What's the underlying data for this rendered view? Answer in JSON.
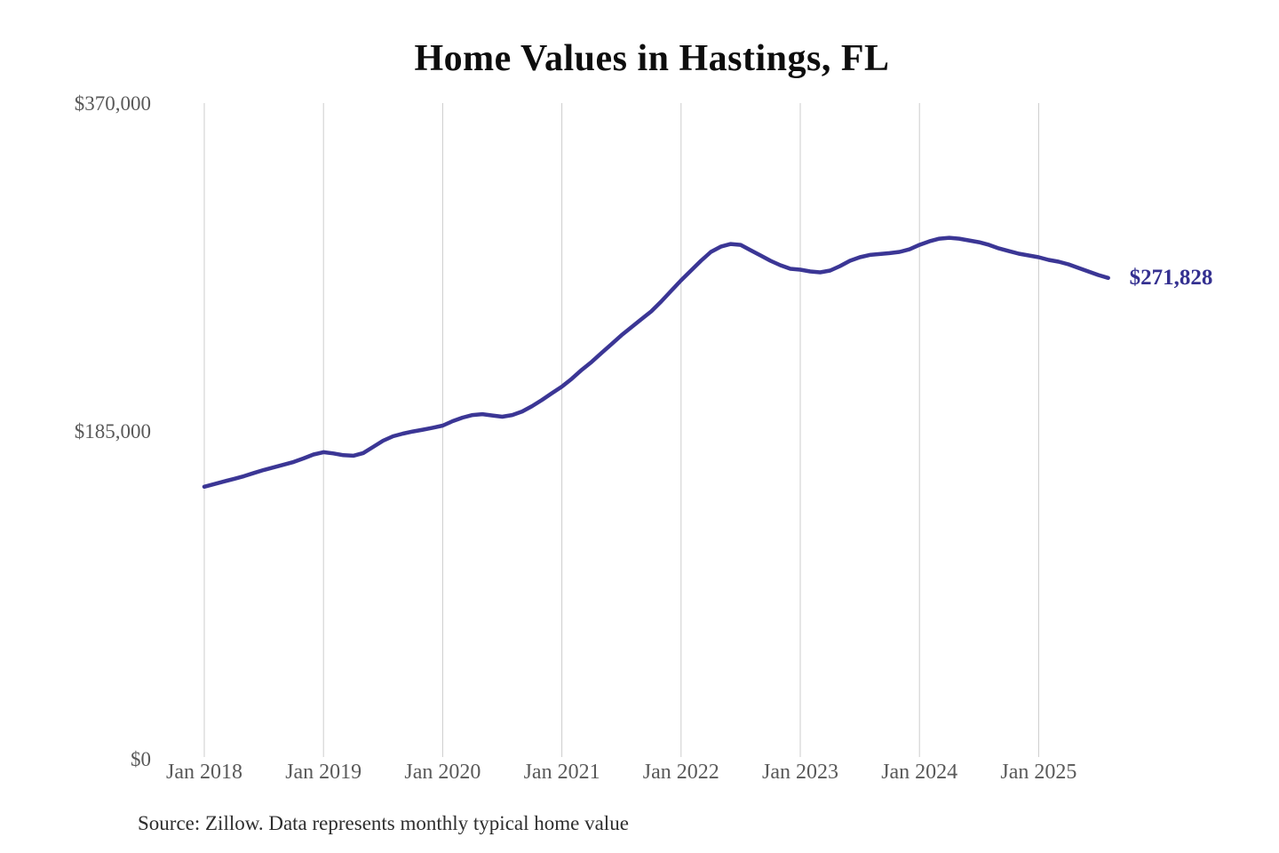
{
  "chart": {
    "title": "Home Values in Hastings, FL",
    "latest_label": "$271,828",
    "source": "Source: Zillow. Data represents monthly typical home value"
  },
  "chart_data": {
    "type": "line",
    "title": "Home Values in Hastings, FL",
    "series_name": "Monthly typical home value (Zillow)",
    "x_unit": "month",
    "x_start": "2018-01",
    "x_end": "2025-08",
    "x_ticks": [
      "Jan 2018",
      "Jan 2019",
      "Jan 2020",
      "Jan 2021",
      "Jan 2022",
      "Jan 2023",
      "Jan 2024",
      "Jan 2025"
    ],
    "y_ticks": [
      {
        "label": "$370,000",
        "value": 370000
      },
      {
        "label": "$185,000",
        "value": 185000
      },
      {
        "label": "$0",
        "value": 0
      }
    ],
    "ylim": [
      0,
      370000
    ],
    "grid": "vertical-only",
    "legend": "none",
    "latest_value": 271828,
    "colors": {
      "line": "#3b3695",
      "latest_label": "#343090",
      "grid": "#cccccc",
      "tick_text": "#595959"
    },
    "values": [
      154000,
      155500,
      157000,
      158500,
      160000,
      161800,
      163500,
      165000,
      166500,
      168000,
      170000,
      172200,
      173500,
      172800,
      171800,
      171500,
      173000,
      176500,
      180000,
      182500,
      184000,
      185200,
      186200,
      187300,
      188500,
      191000,
      193000,
      194500,
      195000,
      194200,
      193500,
      194500,
      196500,
      199500,
      203000,
      206800,
      210500,
      215000,
      220000,
      224500,
      229500,
      234500,
      239500,
      244000,
      248500,
      253000,
      258500,
      264500,
      270500,
      276000,
      281500,
      286500,
      289500,
      291000,
      290500,
      287500,
      284500,
      281500,
      279000,
      277000,
      276500,
      275500,
      275000,
      276000,
      278500,
      281500,
      283500,
      284800,
      285300,
      285800,
      286500,
      288000,
      290500,
      292500,
      294000,
      294500,
      294000,
      293000,
      292000,
      290500,
      288500,
      287000,
      285500,
      284500,
      283500,
      282000,
      281000,
      279500,
      277500,
      275500,
      273500,
      271828
    ]
  }
}
